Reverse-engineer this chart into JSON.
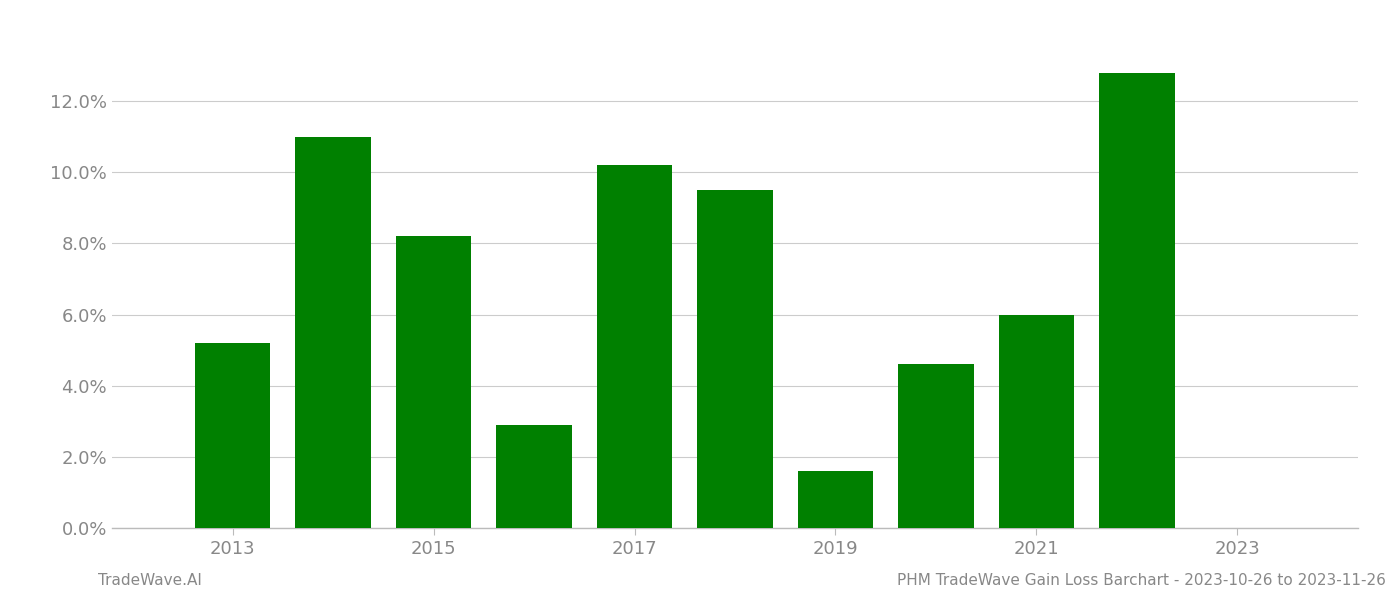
{
  "years": [
    2013,
    2014,
    2015,
    2016,
    2017,
    2018,
    2019,
    2020,
    2021,
    2022
  ],
  "values": [
    0.052,
    0.11,
    0.082,
    0.029,
    0.102,
    0.095,
    0.016,
    0.046,
    0.06,
    0.128
  ],
  "bar_color": "#008000",
  "background_color": "#ffffff",
  "grid_color": "#cccccc",
  "ylim": [
    0,
    0.14
  ],
  "yticks": [
    0.0,
    0.02,
    0.04,
    0.06,
    0.08,
    0.1,
    0.12
  ],
  "xtick_years": [
    2013,
    2015,
    2017,
    2019,
    2021,
    2023
  ],
  "xlim_left": 2011.8,
  "xlim_right": 2024.2,
  "bar_width": 0.75,
  "footer_left": "TradeWave.AI",
  "footer_right": "PHM TradeWave Gain Loss Barchart - 2023-10-26 to 2023-11-26",
  "tick_label_color": "#888888",
  "footer_color": "#888888",
  "spine_color": "#bbbbbb",
  "grid_linewidth": 0.8,
  "tick_fontsize": 13,
  "footer_fontsize": 11
}
